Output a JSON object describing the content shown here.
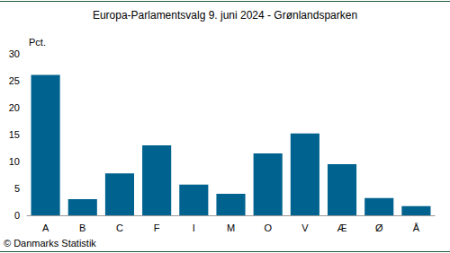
{
  "chart_data": {
    "type": "bar",
    "title": "Europa-Parlamentsvalg 9. juni 2024 - Grønlandsparken",
    "y_label": "Pct.",
    "annotations": [
      "© Danmarks Statistik"
    ],
    "categories": [
      "A",
      "B",
      "C",
      "F",
      "I",
      "M",
      "O",
      "V",
      "Æ",
      "Ø",
      "Å"
    ],
    "values": [
      26.1,
      3.0,
      7.8,
      13.0,
      5.7,
      4.0,
      11.5,
      15.2,
      9.5,
      3.2,
      1.7
    ],
    "color": "#00628f",
    "ylim": [
      0,
      30
    ],
    "yticks": [
      0,
      5,
      10,
      15,
      20,
      25,
      30
    ],
    "grid": false
  }
}
